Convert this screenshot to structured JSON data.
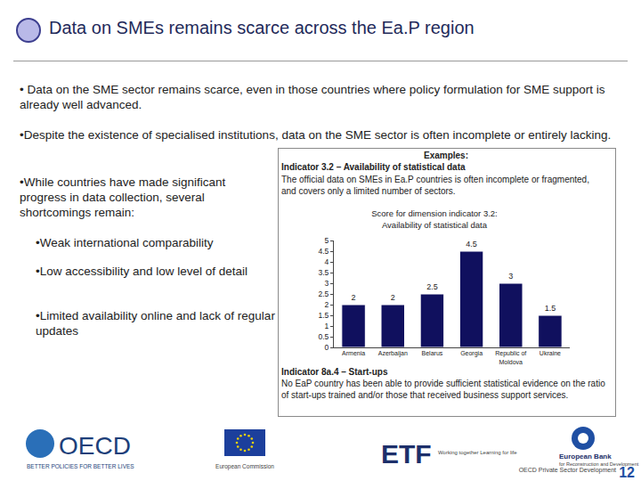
{
  "slide": {
    "title": "Data on SMEs remains scarce across the Ea.P region",
    "bullets": [
      "• Data on the SME sector remains scarce, even in those countries where policy formulation for SME support is already well advanced.",
      "•Despite the existence of specialised institutions, data on the SME sector is often incomplete or entirely lacking.",
      "•While countries have made significant progress in data collection, several shortcomings remain:"
    ],
    "sub_bullets": [
      "•Weak international comparability",
      "•Low accessibility and low level of detail",
      "•Limited availability online and lack of regular updates"
    ],
    "box": {
      "heading": "Examples:",
      "indicator_1": {
        "title": "Indicator 3.2 – Availability of statistical data",
        "text": "The official data on SMEs in Ea.P countries is often incomplete or fragmented, and covers only a limited number of sectors."
      },
      "indicator_2": {
        "title": "Indicator 8a.4 – Start-ups",
        "text": "No EaP country has been able to provide sufficient statistical evidence on the ratio of start-ups trained and/or those that received business support services."
      }
    },
    "footer": {
      "oecd": "OECD",
      "oecd_tagline": "BETTER POLICIES FOR BETTER LIVES",
      "eu": "European Commission",
      "etf": "ETF",
      "etf_tagline": "Working together Learning for life",
      "ebrd": "European Bank",
      "ebrd_tagline": "for Reconstruction and Development",
      "source": "OECD Private Sector Development",
      "page": "12"
    }
  },
  "chart_data": {
    "type": "bar",
    "title": [
      "Score for dimension indicator 3.2:",
      "Availability of statistical data"
    ],
    "categories": [
      "Armenia",
      "Azerbaijan",
      "Belarus",
      "Georgia",
      "Republic of Moldova",
      "Ukraine"
    ],
    "values": [
      2,
      2,
      2.5,
      4.5,
      3,
      1.5
    ],
    "color": "#10105e",
    "ylim": [
      0,
      5
    ],
    "yticks": [
      0,
      0.5,
      1,
      1.5,
      2,
      2.5,
      3,
      3.5,
      4,
      4.5,
      5
    ],
    "grid": false,
    "data_labels": true
  }
}
